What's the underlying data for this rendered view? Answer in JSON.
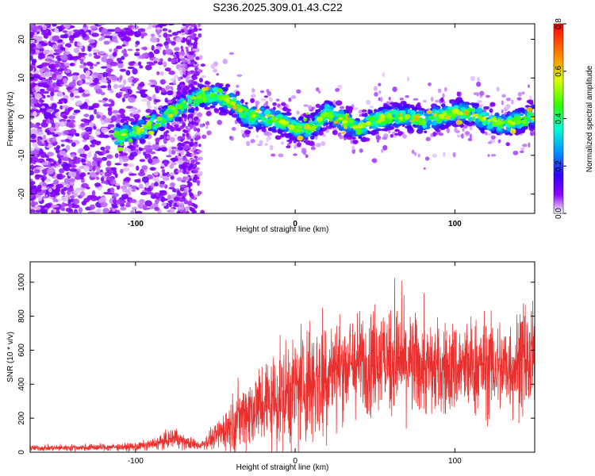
{
  "title": "S236.2025.309.01.43.C22",
  "colors": {
    "snr_line": "#e8312f",
    "axis": "#000000"
  },
  "chart_data": [
    {
      "type": "heatmap",
      "xlabel": "Height of straight line (km)",
      "ylabel": "Frequency (Hz)",
      "xlim": [
        -166,
        150
      ],
      "ylim": [
        -25,
        24
      ],
      "xticks": [
        -100,
        0,
        100
      ],
      "yticks": [
        -20,
        -10,
        0,
        10,
        20
      ],
      "colorbar": {
        "label": "Normalized spectral amplitude",
        "range": [
          0,
          0.8
        ],
        "ticks": [
          "0.0",
          "0.2",
          "0.4",
          "0.6",
          "0.8"
        ],
        "colormap": "rainbow"
      },
      "ridge": {
        "x": [
          -110,
          -100,
          -90,
          -80,
          -70,
          -60,
          -50,
          -40,
          -35,
          -30,
          -20,
          -10,
          0,
          10,
          20,
          30,
          40,
          50,
          60,
          70,
          80,
          90,
          100,
          110,
          120,
          130,
          140,
          148
        ],
        "freq": [
          -5,
          -4,
          -2,
          0,
          3,
          5,
          5.5,
          4,
          2,
          0,
          0,
          -1,
          -3,
          -3,
          1,
          -1,
          -3,
          -1,
          0,
          0,
          -1,
          0,
          1,
          1,
          -1,
          -2,
          -1,
          0
        ]
      }
    },
    {
      "type": "line",
      "xlabel": "Height of straight line (km)",
      "ylabel": "SNR (10 * v/v)",
      "xlim": [
        -166,
        150
      ],
      "ylim": [
        0,
        1120
      ],
      "xticks": [
        -100,
        0,
        100
      ],
      "yticks": [
        0,
        200,
        400,
        600,
        800,
        1000
      ],
      "series": [
        {
          "x": [
            -166,
            -150,
            -130,
            -110,
            -100,
            -90,
            -80,
            -75,
            -70,
            -60,
            -50,
            -40,
            -30,
            -20,
            -10,
            0,
            10,
            20,
            30,
            40,
            50,
            60,
            70,
            80,
            90,
            100,
            110,
            120,
            130,
            140,
            150
          ],
          "values": [
            25,
            25,
            28,
            30,
            32,
            45,
            70,
            90,
            60,
            40,
            90,
            170,
            240,
            290,
            320,
            370,
            420,
            470,
            510,
            520,
            560,
            540,
            520,
            500,
            480,
            490,
            500,
            510,
            500,
            520,
            530
          ]
        }
      ]
    }
  ]
}
